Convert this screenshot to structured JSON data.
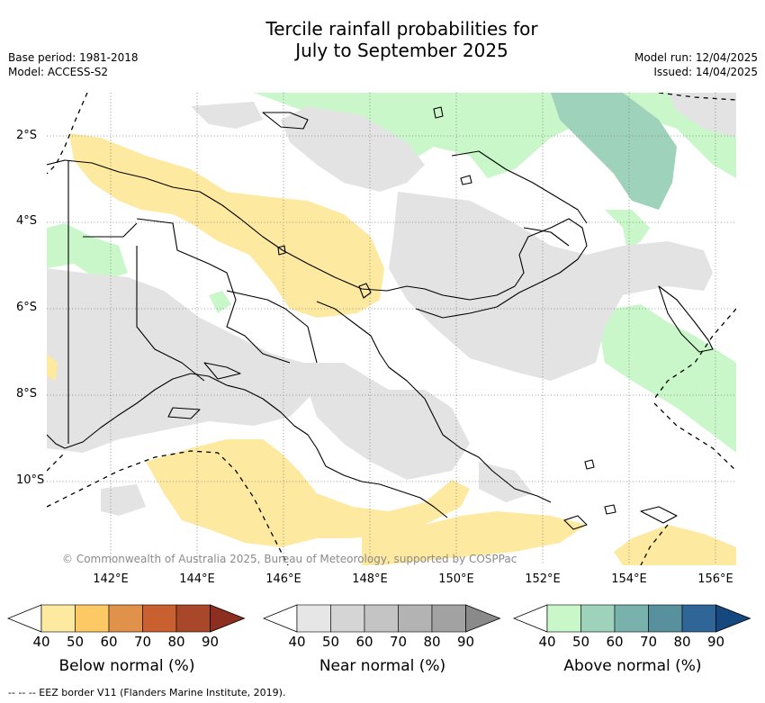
{
  "header": {
    "title_line1": "Tercile rainfall probabilities for",
    "title_line2": "July to September 2025",
    "base_period": "Base period: 1981-2018",
    "model": "Model: ACCESS-S2",
    "model_run": "Model run: 12/04/2025",
    "issued": "Issued: 14/04/2025"
  },
  "map": {
    "credit": "© Commonwealth of Australia 2025, Bureau of Meteorology, supported by COSPPac",
    "x_ticks": [
      "142°E",
      "144°E",
      "146°E",
      "148°E",
      "150°E",
      "152°E",
      "154°E",
      "156°E"
    ],
    "y_ticks": [
      "2°S",
      "4°S",
      "6°S",
      "8°S",
      "10°S"
    ],
    "colors": {
      "below_50": "#fde9a0",
      "near_40": "#e3e3e3",
      "above_40": "#c9f7c9",
      "above_50": "#9fd2bb",
      "coast": "#000000",
      "eez": "#000000"
    }
  },
  "legend": {
    "ticks": [
      "40",
      "50",
      "60",
      "70",
      "80",
      "90"
    ],
    "below": {
      "label": "Below normal (%)",
      "colors": [
        "#ffffff",
        "#fde9a0",
        "#fdc964",
        "#e0924a",
        "#c8612f",
        "#a9472a",
        "#8c2e20"
      ]
    },
    "near": {
      "label": "Near normal (%)",
      "colors": [
        "#ffffff",
        "#e6e6e6",
        "#d5d5d5",
        "#c4c4c4",
        "#b3b3b3",
        "#a2a2a2",
        "#8a8a8a"
      ]
    },
    "above": {
      "label": "Above normal (%)",
      "colors": [
        "#ffffff",
        "#c9f7c9",
        "#9fd2bb",
        "#79b2ac",
        "#58909e",
        "#2f6597",
        "#15487f"
      ]
    }
  },
  "footer": {
    "eez_note": "--  --  -- EEZ border V11 (Flanders Marine Institute, 2019)."
  }
}
